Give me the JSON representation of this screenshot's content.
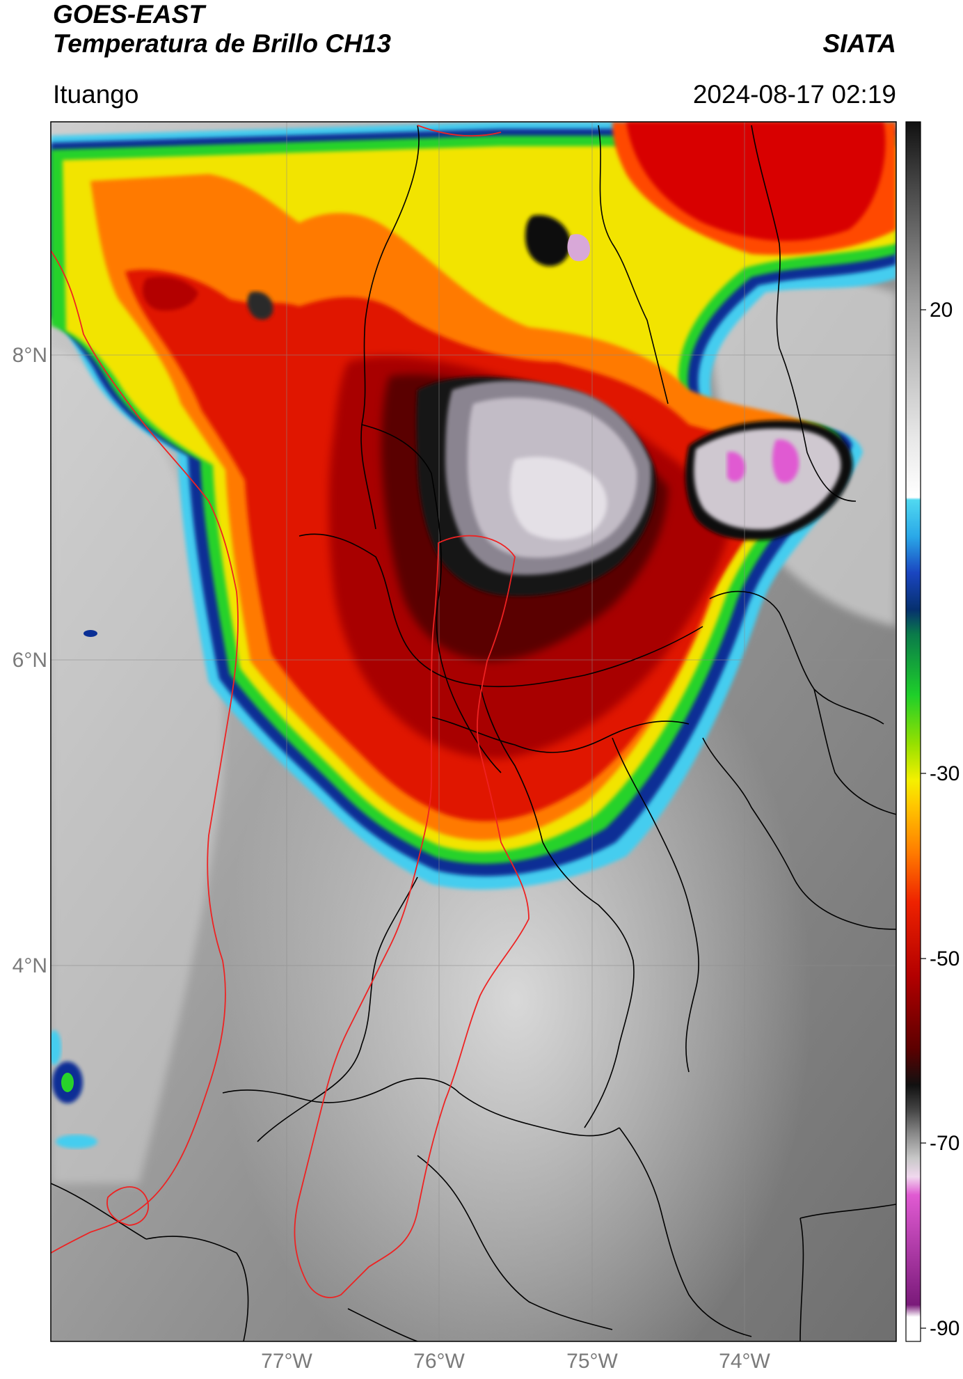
{
  "header": {
    "title": "GOES-EAST",
    "subtitle": "Temperatura de Brillo CH13",
    "organization": "SIATA",
    "region": "Ituango",
    "timestamp": "2024-08-17 02:19"
  },
  "map": {
    "lat_ticks": [
      "8°N",
      "6°N",
      "4°N"
    ],
    "lon_ticks": [
      "77°W",
      "76°W",
      "75°W",
      "74°W"
    ]
  },
  "colorbar": {
    "unit_range": [
      -90,
      40
    ],
    "tick_labels": [
      "20",
      "-30",
      "-50",
      "-70",
      "-90"
    ],
    "colors": {
      "warm_gray": "#b9b9b9",
      "cyan": "#33c8e8",
      "blue": "#0b2f8e",
      "green": "#1ecf2a",
      "yellow": "#f5e400",
      "orange": "#ff6a00",
      "red": "#d80000",
      "dark_red": "#5c0000",
      "black": "#111111",
      "magenta": "#d63ec4"
    }
  }
}
